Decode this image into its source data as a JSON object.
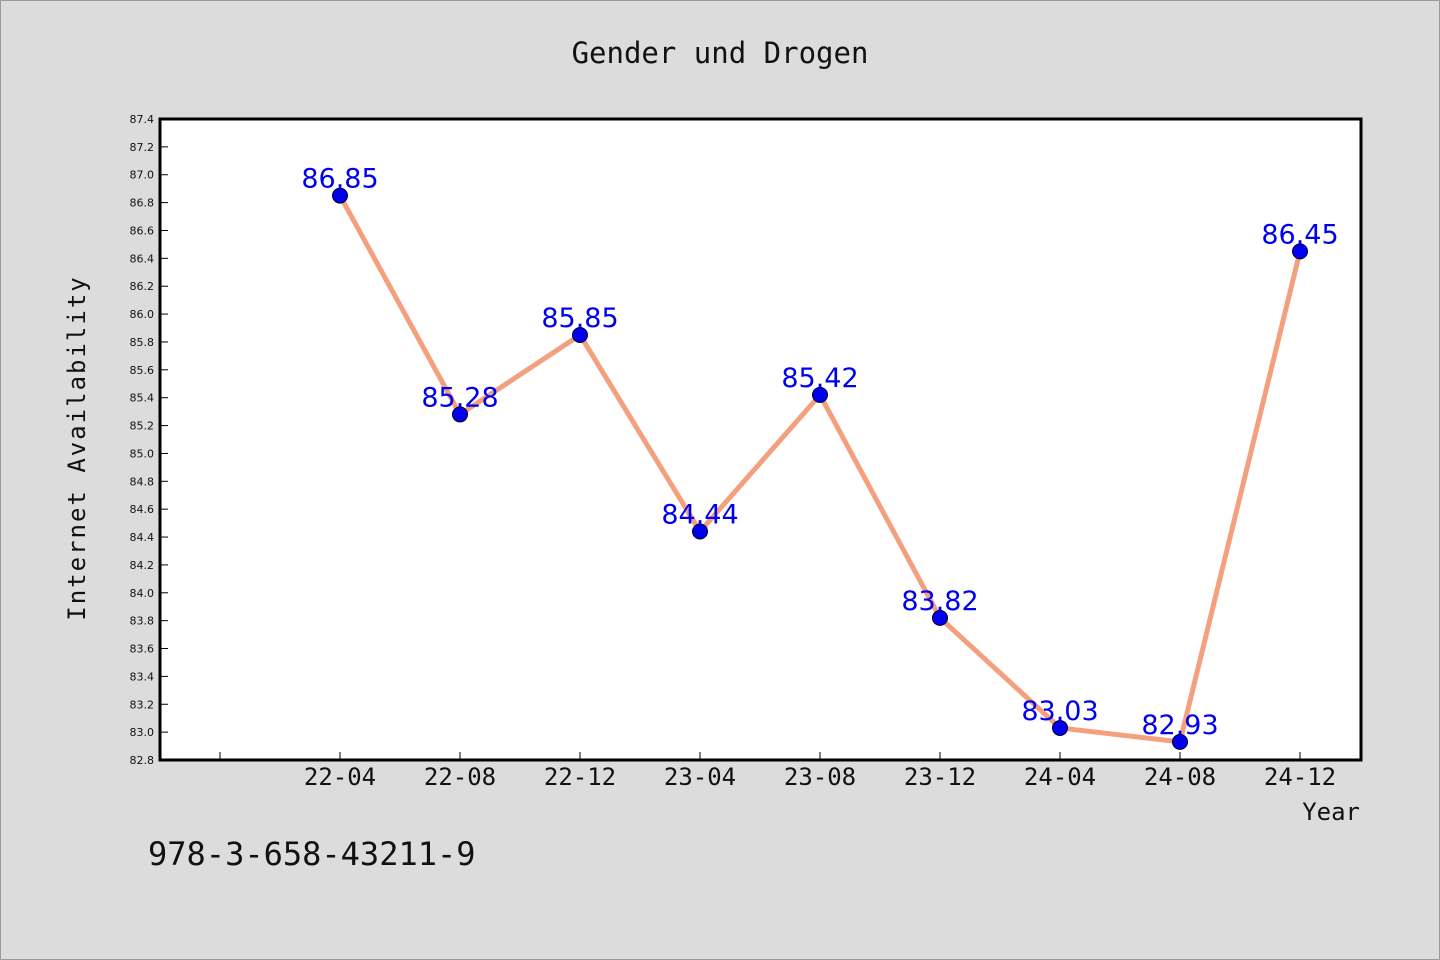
{
  "colors": {
    "background": "#dcdcdc",
    "plot_background": "#ffffff",
    "line": "#f4a07e",
    "marker": "#0000ee",
    "data_label": "#0000ee",
    "text": "#111111"
  },
  "chart_data": {
    "type": "line",
    "title": "Gender und Drogen",
    "xlabel": "Year",
    "ylabel": "Internet Availability",
    "categories": [
      "22-04",
      "22-08",
      "22-12",
      "23-04",
      "23-08",
      "23-12",
      "24-04",
      "24-08",
      "24-12"
    ],
    "series": [
      {
        "values": [
          86.85,
          85.28,
          85.85,
          84.44,
          85.42,
          83.82,
          83.03,
          82.93,
          86.45
        ]
      }
    ],
    "data_labels": [
      "86.85",
      "85.28",
      "85.85",
      "84.44",
      "85.42",
      "83.82",
      "83.03",
      "82.93",
      "86.45"
    ],
    "ylim": [
      82.8,
      87.4
    ],
    "yticks": [
      "82.8",
      "83.0",
      "83.2",
      "83.4",
      "83.6",
      "83.8",
      "84.0",
      "84.2",
      "84.4",
      "84.6",
      "84.8",
      "85.0",
      "85.2",
      "85.4",
      "85.6",
      "85.8",
      "86.0",
      "86.2",
      "86.4",
      "86.6",
      "86.8",
      "87.0",
      "87.2",
      "87.4"
    ],
    "grid": false,
    "legend": "none"
  },
  "footer": {
    "isbn": "978-3-658-43211-9"
  }
}
